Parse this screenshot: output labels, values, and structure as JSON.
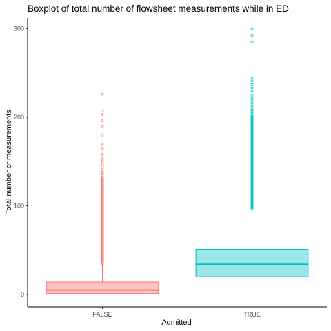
{
  "chart_data": {
    "type": "boxplot",
    "title": "Boxplot of total number of flowsheet measurements while in ED",
    "xlabel": "Admitted",
    "ylabel": "Total number of measurements",
    "ylim": [
      -14,
      312
    ],
    "yticks": [
      0,
      100,
      200,
      300
    ],
    "grid": false,
    "legend": "none",
    "categories": [
      "FALSE",
      "TRUE"
    ],
    "boxes": [
      {
        "category": "FALSE",
        "color": "#F8766D",
        "fill": "#FCC3C0",
        "whisker_low": 0,
        "q1": 1,
        "median": 5,
        "q3": 14,
        "whisker_high": 34,
        "outliers": [
          35,
          36,
          37,
          38,
          39,
          40,
          41,
          42,
          43,
          44,
          45,
          46,
          47,
          48,
          49,
          50,
          51,
          52,
          53,
          54,
          55,
          56,
          57,
          58,
          59,
          60,
          61,
          62,
          63,
          64,
          65,
          66,
          67,
          68,
          69,
          70,
          71,
          72,
          73,
          74,
          75,
          76,
          77,
          78,
          79,
          80,
          81,
          82,
          83,
          84,
          85,
          86,
          87,
          88,
          89,
          90,
          91,
          92,
          93,
          94,
          95,
          96,
          97,
          98,
          99,
          100,
          101,
          102,
          103,
          104,
          105,
          106,
          107,
          108,
          109,
          110,
          111,
          112,
          113,
          114,
          115,
          116,
          117,
          118,
          119,
          120,
          121,
          122,
          123,
          124,
          125,
          126,
          127,
          128,
          129,
          130,
          131,
          132,
          134,
          136,
          138,
          141,
          144,
          147,
          150,
          153,
          158,
          165,
          170,
          180,
          190,
          196,
          203,
          207,
          226
        ]
      },
      {
        "category": "TRUE",
        "color": "#00BFC4",
        "fill": "#9AE6E8",
        "whisker_low": 0,
        "q1": 20,
        "median": 34,
        "q3": 51,
        "whisker_high": 96,
        "outliers": [
          97,
          98,
          99,
          100,
          101,
          102,
          103,
          104,
          105,
          106,
          107,
          108,
          109,
          110,
          111,
          112,
          113,
          114,
          115,
          116,
          117,
          118,
          119,
          120,
          121,
          122,
          123,
          124,
          125,
          126,
          127,
          128,
          129,
          130,
          131,
          132,
          133,
          134,
          135,
          136,
          137,
          138,
          139,
          140,
          141,
          142,
          143,
          144,
          145,
          146,
          147,
          148,
          149,
          150,
          151,
          152,
          153,
          154,
          155,
          156,
          157,
          158,
          159,
          160,
          161,
          162,
          163,
          164,
          165,
          166,
          167,
          168,
          169,
          170,
          171,
          172,
          173,
          174,
          175,
          176,
          177,
          178,
          179,
          180,
          181,
          182,
          183,
          184,
          185,
          186,
          187,
          188,
          189,
          190,
          191,
          192,
          193,
          194,
          195,
          196,
          197,
          198,
          199,
          200,
          201,
          202,
          204,
          206,
          208,
          210,
          213,
          216,
          219,
          222,
          225,
          229,
          233,
          237,
          241,
          244,
          285,
          292,
          300
        ]
      }
    ]
  }
}
